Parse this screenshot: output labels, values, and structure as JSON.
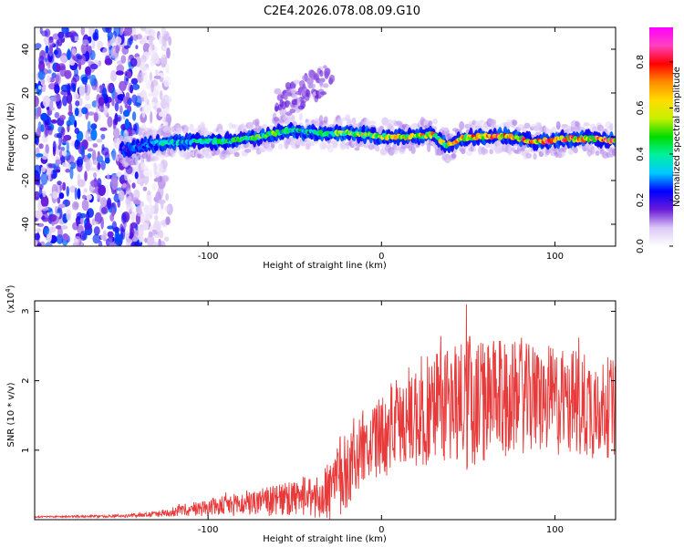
{
  "figure": {
    "title": "C2E4.2026.078.08.09.G10"
  },
  "chart_data": [
    {
      "type": "heatmap",
      "title": "C2E4.2026.078.08.09.G10",
      "xlabel": "Height of straight line (km)",
      "ylabel": "Frequency (Hz)",
      "xlim": [
        -200,
        135
      ],
      "ylim": [
        -50,
        50
      ],
      "xticks": [
        -100,
        0,
        100
      ],
      "yticks": [
        -40,
        -20,
        0,
        20,
        40
      ],
      "colorbar": {
        "label": "Normalized spectral amplitude",
        "range": [
          0.0,
          0.95
        ],
        "ticks": [
          0.0,
          0.2,
          0.4,
          0.6,
          0.8
        ],
        "colormap": [
          "#ffffff",
          "#dcc8f5",
          "#6a1bd8",
          "#0000ff",
          "#00c8ff",
          "#00f0a0",
          "#00dc00",
          "#c8f000",
          "#ffdc00",
          "#ff8c00",
          "#ff0000",
          "#ff40c0",
          "#ff00ff"
        ]
      },
      "noise_region": {
        "x": [
          -200,
          -130
        ],
        "y": [
          -50,
          50
        ],
        "amplitude": 0.1
      },
      "ridge": {
        "x": [
          -150,
          -130,
          -110,
          -90,
          -70,
          -55,
          -40,
          -30,
          -20,
          -10,
          0,
          10,
          20,
          30,
          38,
          45,
          55,
          65,
          75,
          85,
          95,
          105,
          115,
          125,
          135
        ],
        "y": [
          -6,
          -3,
          -2,
          -2,
          0,
          3,
          2,
          1,
          2,
          1,
          0,
          0,
          0,
          1,
          -4,
          -1,
          0,
          0,
          0,
          -2,
          -2,
          -1,
          -1,
          -1,
          -2
        ],
        "amplitude": [
          0.25,
          0.4,
          0.45,
          0.5,
          0.55,
          0.5,
          0.45,
          0.5,
          0.6,
          0.65,
          0.65,
          0.7,
          0.7,
          0.75,
          0.7,
          0.75,
          0.8,
          0.8,
          0.85,
          0.85,
          0.85,
          0.85,
          0.85,
          0.9,
          0.9
        ]
      },
      "faint_branch": {
        "x": [
          -60,
          -50,
          -40,
          -30
        ],
        "y": [
          15,
          18,
          22,
          27
        ]
      }
    },
    {
      "type": "line",
      "xlabel": "Height of straight line (km)",
      "ylabel": "SNR (10 * v/v)",
      "yscale_label": "(x10",
      "yscale_exp": "4",
      "yscale_close": ")",
      "xlim": [
        -200,
        135
      ],
      "ylim": [
        0,
        3.15
      ],
      "xticks": [
        -100,
        0,
        100
      ],
      "yticks": [
        1,
        2,
        3
      ],
      "series": [
        {
          "name": "SNR",
          "color": "#e83a3a",
          "envelope_x": [
            -200,
            -150,
            -130,
            -110,
            -90,
            -70,
            -50,
            -35,
            -25,
            -15,
            -5,
            0,
            10,
            20,
            30,
            40,
            50,
            60,
            80,
            100,
            120,
            135
          ],
          "envelope_mean": [
            0.04,
            0.05,
            0.08,
            0.15,
            0.2,
            0.25,
            0.3,
            0.3,
            0.55,
            0.9,
            1.1,
            1.2,
            1.4,
            1.5,
            1.6,
            1.7,
            1.7,
            1.7,
            1.75,
            1.7,
            1.65,
            1.6
          ],
          "envelope_amp": [
            0.01,
            0.02,
            0.04,
            0.1,
            0.15,
            0.2,
            0.25,
            0.3,
            0.7,
            0.5,
            0.5,
            0.6,
            0.7,
            0.8,
            0.9,
            0.9,
            1.0,
            0.9,
            0.8,
            0.8,
            0.8,
            0.7
          ],
          "peak": {
            "x": 49,
            "y": 3.1
          }
        }
      ]
    }
  ]
}
